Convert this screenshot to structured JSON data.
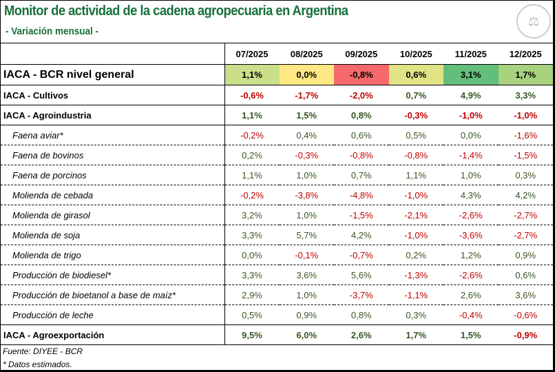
{
  "title": "Monitor de actividad de la cadena agropecuaria en Argentina",
  "subtitle": "- Variación mensual -",
  "logo_text": "BOLSA DE COMERCIO DE ROSARIO",
  "columns": [
    "07/2025",
    "08/2025",
    "09/2025",
    "10/2025",
    "11/2025",
    "12/2025"
  ],
  "general": {
    "label": "IACA - BCR nivel general",
    "values": [
      "1,1%",
      "0,0%",
      "-0,8%",
      "0,6%",
      "3,1%",
      "1,7%"
    ],
    "colors": [
      "#c9df8a",
      "#ffe884",
      "#f8696b",
      "#e0e383",
      "#63be7b",
      "#a9d27f"
    ]
  },
  "rows": [
    {
      "label": "IACA - Cultivos",
      "type": "main",
      "values": [
        "-0,6%",
        "-1,7%",
        "-2,0%",
        "0,7%",
        "4,9%",
        "3,3%"
      ]
    },
    {
      "label": "IACA - Agroindustria",
      "type": "main",
      "values": [
        "1,1%",
        "1,5%",
        "0,8%",
        "-0,3%",
        "-1,0%",
        "-1,0%"
      ]
    },
    {
      "label": "Faena aviar*",
      "type": "sub",
      "values": [
        "-0,2%",
        "0,4%",
        "0,6%",
        "0,5%",
        "0,0%",
        "-1,6%"
      ]
    },
    {
      "label": "Faena de bovinos",
      "type": "sub",
      "values": [
        "0,2%",
        "-0,3%",
        "-0,8%",
        "-0,8%",
        "-1,4%",
        "-1,5%"
      ]
    },
    {
      "label": "Faena de porcinos",
      "type": "sub",
      "values": [
        "1,1%",
        "1,0%",
        "0,7%",
        "1,1%",
        "1,0%",
        "0,3%"
      ]
    },
    {
      "label": "Molienda de cebada",
      "type": "sub",
      "values": [
        "-0,2%",
        "-3,8%",
        "-4,8%",
        "-1,0%",
        "4,3%",
        "4,2%"
      ]
    },
    {
      "label": "Molienda de girasol",
      "type": "sub",
      "values": [
        "3,2%",
        "1,0%",
        "-1,5%",
        "-2,1%",
        "-2,6%",
        "-2,7%"
      ]
    },
    {
      "label": "Molienda de soja",
      "type": "sub",
      "values": [
        "3,3%",
        "5,7%",
        "4,2%",
        "-1,0%",
        "-3,6%",
        "-2,7%"
      ]
    },
    {
      "label": "Molienda de trigo",
      "type": "sub",
      "values": [
        "0,0%",
        "-0,1%",
        "-0,7%",
        "0,2%",
        "1,2%",
        "0,9%"
      ]
    },
    {
      "label": "Producción de biodiesel*",
      "type": "sub",
      "values": [
        "3,3%",
        "3,6%",
        "5,6%",
        "-1,3%",
        "-2,6%",
        "0,6%"
      ]
    },
    {
      "label": "Producción de bioetanol a base de maíz*",
      "type": "sub",
      "values": [
        "2,9%",
        "1,0%",
        "-3,7%",
        "-1,1%",
        "2,6%",
        "3,6%"
      ]
    },
    {
      "label": "Producción de leche",
      "type": "sub last",
      "values": [
        "0,5%",
        "0,9%",
        "0,8%",
        "0,3%",
        "-0,4%",
        "-0,6%"
      ]
    },
    {
      "label": "IACA - Agroexportación",
      "type": "main exp",
      "values": [
        "9,5%",
        "6,0%",
        "2,6%",
        "1,7%",
        "1,5%",
        "-0,9%"
      ]
    }
  ],
  "footer": {
    "source": "Fuente: DIYEE - BCR",
    "note": "* Datos estimados."
  },
  "colors": {
    "positive": "#375623",
    "negative": "#c00000",
    "title": "#17703a"
  }
}
